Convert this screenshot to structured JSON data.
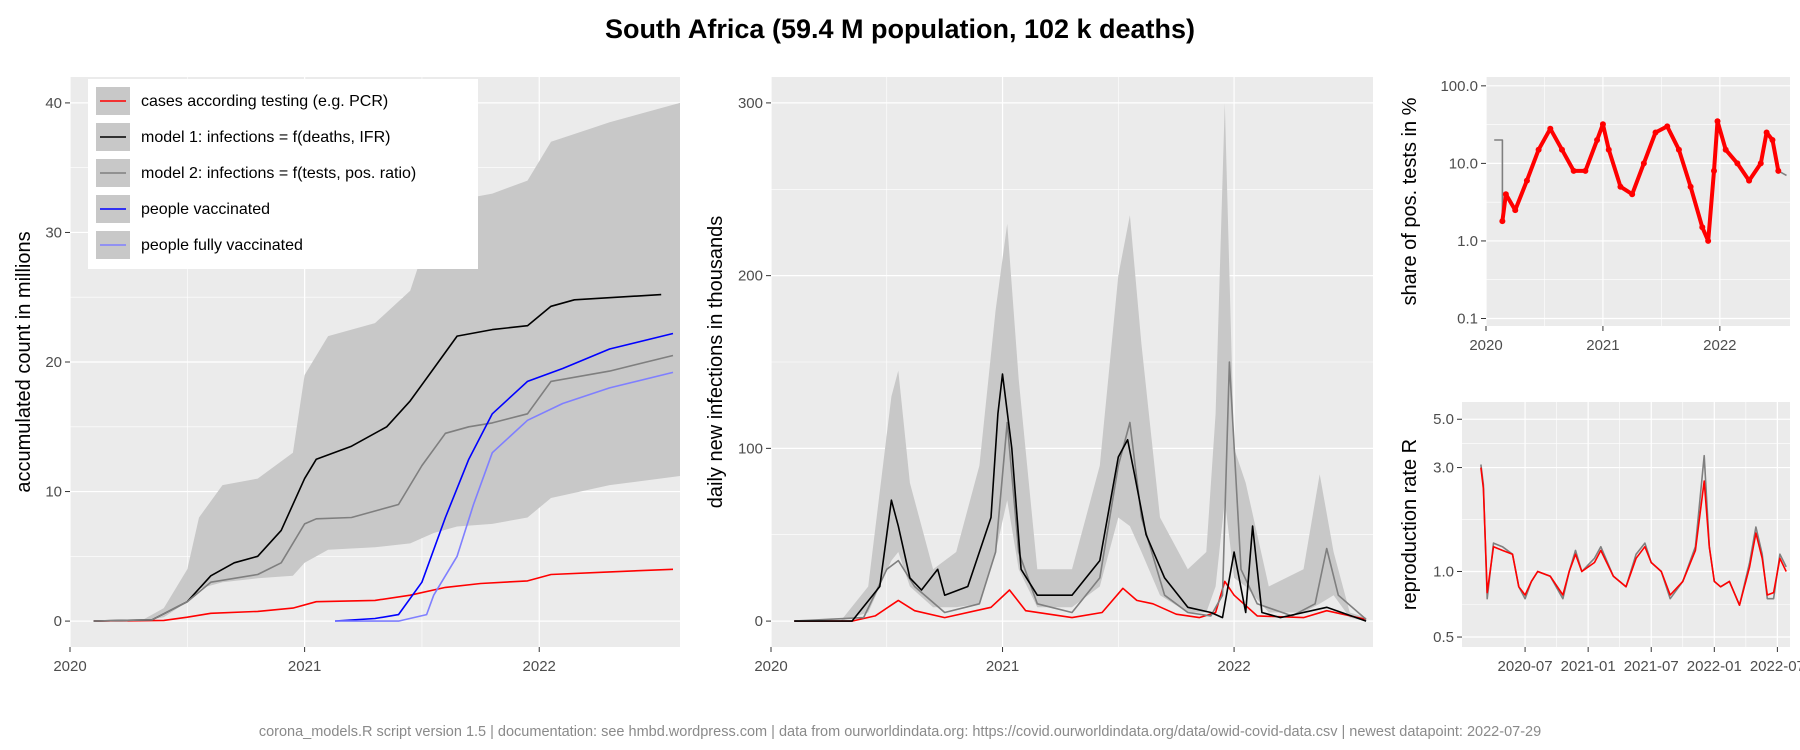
{
  "title": "South Africa (59.4 M population, 102 k deaths)",
  "footer": "corona_models.R script version 1.5 | documentation: see hmbd.wordpress.com | data from ourworldindata.org: https://covid.ourworldindata.org/data/owid-covid-data.csv | newest datapoint: 2022-07-29",
  "colors": {
    "panel_bg": "#ebebeb",
    "grid": "#ffffff",
    "band": "#c8c8c8",
    "cases": "#ff0000",
    "model1": "#000000",
    "model2": "#7f7f7f",
    "vaccinated": "#0000ff",
    "fully_vaccinated": "#7f7fff"
  },
  "chart_data": [
    {
      "id": "accumulated",
      "type": "line",
      "ylabel": "accumulated count in millions",
      "x_ticks": [
        "2020",
        "2021",
        "2022"
      ],
      "y_ticks": [
        "0",
        "10",
        "20",
        "30",
        "40"
      ],
      "xlim": [
        2020.0,
        2022.6
      ],
      "ylim": [
        -2,
        42
      ],
      "legend": {
        "position": "top-left",
        "entries": [
          {
            "key": "cases",
            "label": "cases according testing (e.g. PCR)"
          },
          {
            "key": "model1",
            "label": "model 1: infections = f(deaths, IFR)"
          },
          {
            "key": "model2",
            "label": "model 2: infections = f(tests, pos. ratio)"
          },
          {
            "key": "vaccinated",
            "label": "people vaccinated"
          },
          {
            "key": "fully_vaccinated",
            "label": "people fully vaccinated"
          }
        ]
      },
      "band": {
        "x": [
          2020.0,
          2020.3,
          2020.4,
          2020.5,
          2020.55,
          2020.65,
          2020.8,
          2020.95,
          2021.0,
          2021.1,
          2021.3,
          2021.45,
          2021.55,
          2021.65,
          2021.8,
          2021.95,
          2022.05,
          2022.3,
          2022.6
        ],
        "lower": [
          0,
          0,
          0.3,
          1.5,
          2.5,
          3.0,
          3.3,
          3.5,
          4.5,
          5.5,
          5.7,
          6.0,
          6.8,
          7.3,
          7.5,
          8.0,
          9.5,
          10.5,
          11.2
        ],
        "upper": [
          0,
          0,
          1.0,
          4.0,
          8.0,
          10.5,
          11.0,
          13.0,
          19.0,
          22.0,
          23.0,
          25.5,
          31.0,
          32.5,
          33.0,
          34.0,
          37.0,
          38.5,
          40.0
        ]
      },
      "series": [
        {
          "key": "cases",
          "x": [
            2020.1,
            2020.4,
            2020.5,
            2020.6,
            2020.8,
            2020.95,
            2021.05,
            2021.3,
            2021.45,
            2021.6,
            2021.75,
            2021.95,
            2022.05,
            2022.3,
            2022.57
          ],
          "y": [
            0,
            0.05,
            0.3,
            0.6,
            0.75,
            1.0,
            1.5,
            1.6,
            2.0,
            2.6,
            2.9,
            3.1,
            3.6,
            3.8,
            4.0
          ]
        },
        {
          "key": "model1",
          "x": [
            2020.1,
            2020.35,
            2020.5,
            2020.6,
            2020.7,
            2020.8,
            2020.9,
            2021.0,
            2021.05,
            2021.2,
            2021.35,
            2021.45,
            2021.55,
            2021.65,
            2021.8,
            2021.95,
            2022.05,
            2022.15,
            2022.52
          ],
          "y": [
            0,
            0.1,
            1.5,
            3.5,
            4.5,
            5.0,
            7.0,
            11.0,
            12.5,
            13.5,
            15.0,
            17.0,
            19.5,
            22.0,
            22.5,
            22.8,
            24.3,
            24.8,
            25.2
          ]
        },
        {
          "key": "model2",
          "x": [
            2020.1,
            2020.35,
            2020.5,
            2020.6,
            2020.8,
            2020.9,
            2021.0,
            2021.05,
            2021.2,
            2021.4,
            2021.5,
            2021.6,
            2021.7,
            2021.8,
            2021.95,
            2022.05,
            2022.3,
            2022.57
          ],
          "y": [
            0,
            0.1,
            1.5,
            3.0,
            3.6,
            4.5,
            7.5,
            7.9,
            8.0,
            9.0,
            12.0,
            14.5,
            15.0,
            15.3,
            16.0,
            18.5,
            19.3,
            20.5
          ]
        },
        {
          "key": "vaccinated",
          "x": [
            2021.13,
            2021.3,
            2021.4,
            2021.5,
            2021.6,
            2021.7,
            2021.8,
            2021.95,
            2022.1,
            2022.3,
            2022.57
          ],
          "y": [
            0,
            0.2,
            0.5,
            3.0,
            8.0,
            12.5,
            16.0,
            18.5,
            19.5,
            21.0,
            22.2
          ]
        },
        {
          "key": "fully_vaccinated",
          "x": [
            2021.13,
            2021.4,
            2021.52,
            2021.55,
            2021.65,
            2021.72,
            2021.8,
            2021.95,
            2022.1,
            2022.3,
            2022.57
          ],
          "y": [
            0,
            0,
            0.5,
            2.0,
            5.0,
            9.0,
            13.0,
            15.5,
            16.8,
            18.0,
            19.2
          ]
        }
      ]
    },
    {
      "id": "daily",
      "type": "line",
      "ylabel": "daily new infections in thousands",
      "x_ticks": [
        "2020",
        "2021",
        "2022"
      ],
      "y_ticks": [
        "0",
        "100",
        "200",
        "300"
      ],
      "xlim": [
        2020.0,
        2022.6
      ],
      "ylim": [
        -15,
        315
      ],
      "band": {
        "x": [
          2020.1,
          2020.3,
          2020.42,
          2020.52,
          2020.55,
          2020.6,
          2020.7,
          2020.8,
          2020.9,
          2020.97,
          2021.02,
          2021.07,
          2021.15,
          2021.3,
          2021.42,
          2021.5,
          2021.55,
          2021.6,
          2021.68,
          2021.8,
          2021.88,
          2021.92,
          2021.96,
          2022.0,
          2022.05,
          2022.15,
          2022.3,
          2022.37,
          2022.43,
          2022.5,
          2022.57
        ],
        "lower": [
          0,
          0,
          5,
          35,
          40,
          20,
          8,
          8,
          10,
          40,
          70,
          30,
          8,
          8,
          20,
          60,
          55,
          40,
          15,
          5,
          5,
          20,
          70,
          25,
          20,
          5,
          5,
          10,
          15,
          2,
          0
        ],
        "upper": [
          0,
          0,
          20,
          130,
          145,
          80,
          30,
          40,
          90,
          180,
          230,
          140,
          30,
          30,
          90,
          200,
          235,
          160,
          60,
          30,
          40,
          120,
          300,
          100,
          80,
          20,
          30,
          85,
          40,
          5,
          2
        ]
      },
      "series": [
        {
          "key": "cases",
          "x": [
            2020.1,
            2020.35,
            2020.45,
            2020.55,
            2020.62,
            2020.75,
            2020.95,
            2021.03,
            2021.1,
            2021.3,
            2021.43,
            2021.52,
            2021.58,
            2021.65,
            2021.75,
            2021.85,
            2021.92,
            2021.96,
            2022.0,
            2022.1,
            2022.3,
            2022.4,
            2022.57
          ],
          "y": [
            0,
            0,
            3,
            12,
            6,
            2,
            8,
            18,
            6,
            2,
            5,
            19,
            12,
            10,
            4,
            2,
            5,
            23,
            15,
            3,
            2,
            6,
            1
          ]
        },
        {
          "key": "model2",
          "x": [
            2020.1,
            2020.4,
            2020.5,
            2020.55,
            2020.62,
            2020.75,
            2020.9,
            2020.97,
            2021.02,
            2021.07,
            2021.15,
            2021.3,
            2021.42,
            2021.5,
            2021.55,
            2021.6,
            2021.7,
            2021.8,
            2021.9,
            2021.95,
            2021.98,
            2022.03,
            2022.1,
            2022.25,
            2022.35,
            2022.4,
            2022.45,
            2022.57
          ],
          "y": [
            0,
            2,
            30,
            35,
            20,
            5,
            10,
            40,
            115,
            40,
            10,
            5,
            25,
            90,
            115,
            60,
            15,
            5,
            3,
            15,
            150,
            30,
            10,
            3,
            10,
            42,
            15,
            1
          ]
        },
        {
          "key": "model1",
          "x": [
            2020.1,
            2020.35,
            2020.47,
            2020.52,
            2020.55,
            2020.6,
            2020.65,
            2020.72,
            2020.75,
            2020.85,
            2020.95,
            2020.98,
            2021.0,
            2021.04,
            2021.08,
            2021.15,
            2021.3,
            2021.42,
            2021.5,
            2021.54,
            2021.57,
            2021.62,
            2021.7,
            2021.8,
            2021.9,
            2021.95,
            2022.0,
            2022.05,
            2022.08,
            2022.12,
            2022.2,
            2022.4,
            2022.57
          ],
          "y": [
            0,
            0,
            20,
            70,
            55,
            25,
            18,
            30,
            15,
            20,
            60,
            120,
            143,
            100,
            30,
            15,
            15,
            35,
            95,
            105,
            85,
            50,
            25,
            8,
            5,
            2,
            40,
            5,
            55,
            5,
            2,
            8,
            0
          ]
        }
      ]
    },
    {
      "id": "positivity",
      "type": "line",
      "ylabel": "share of pos. tests in %",
      "y_scale": "log",
      "x_ticks": [
        "2020",
        "2021",
        "2022"
      ],
      "y_ticks": [
        "0.1",
        "1.0",
        "10.0",
        "100.0"
      ],
      "xlim": [
        2020.0,
        2022.6
      ],
      "ylim": [
        0.08,
        130
      ],
      "series": [
        {
          "key": "model2",
          "x": [
            2020.07,
            2020.14,
            2020.14,
            2020.17,
            2020.25,
            2020.35,
            2020.45,
            2020.55,
            2020.65,
            2020.75,
            2020.85,
            2020.95,
            2021.0,
            2021.05,
            2021.15,
            2021.25,
            2021.35,
            2021.45,
            2021.55,
            2021.65,
            2021.75,
            2021.85,
            2021.9,
            2021.95,
            2021.98,
            2022.05,
            2022.15,
            2022.25,
            2022.35,
            2022.4,
            2022.45,
            2022.5,
            2022.57
          ],
          "y": [
            20,
            20,
            1.8,
            4,
            2.5,
            6,
            15,
            28,
            15,
            8,
            8,
            20,
            32,
            15,
            5,
            4,
            10,
            25,
            30,
            15,
            5,
            1.5,
            1,
            8,
            35,
            15,
            10,
            6,
            10,
            25,
            20,
            8,
            7
          ]
        },
        {
          "key": "cases",
          "x": [
            2020.14,
            2020.17,
            2020.25,
            2020.35,
            2020.45,
            2020.55,
            2020.65,
            2020.75,
            2020.85,
            2020.95,
            2021.0,
            2021.05,
            2021.15,
            2021.25,
            2021.35,
            2021.45,
            2021.55,
            2021.65,
            2021.75,
            2021.85,
            2021.9,
            2021.95,
            2021.98,
            2022.05,
            2022.15,
            2022.25,
            2022.35,
            2022.4,
            2022.45,
            2022.5
          ],
          "y": [
            1.8,
            4,
            2.5,
            6,
            15,
            28,
            15,
            8,
            8,
            20,
            32,
            15,
            5,
            4,
            10,
            25,
            30,
            15,
            5,
            1.5,
            1,
            8,
            35,
            15,
            10,
            6,
            10,
            25,
            20,
            8
          ]
        }
      ]
    },
    {
      "id": "reproduction",
      "type": "line",
      "ylabel": "reproduction rate R",
      "y_scale": "log",
      "x_ticks": [
        "2020-07",
        "2021-01",
        "2021-07",
        "2022-01",
        "2022-07"
      ],
      "y_ticks": [
        "0.5",
        "1.0",
        "3.0",
        "5.0"
      ],
      "xlim": [
        2020.0,
        2022.6
      ],
      "ylim": [
        0.45,
        6
      ],
      "series": [
        {
          "key": "model2",
          "x": [
            2020.15,
            2020.17,
            2020.2,
            2020.25,
            2020.32,
            2020.4,
            2020.45,
            2020.5,
            2020.55,
            2020.6,
            2020.7,
            2020.8,
            2020.85,
            2020.9,
            2020.95,
            2021.05,
            2021.1,
            2021.2,
            2021.3,
            2021.38,
            2021.45,
            2021.5,
            2021.58,
            2021.65,
            2021.75,
            2021.85,
            2021.92,
            2021.96,
            2022.0,
            2022.05,
            2022.12,
            2022.2,
            2022.28,
            2022.33,
            2022.38,
            2022.42,
            2022.47,
            2022.52,
            2022.57
          ],
          "y": [
            3.1,
            2.5,
            0.75,
            1.35,
            1.3,
            1.2,
            0.85,
            0.75,
            0.9,
            1.0,
            0.95,
            0.75,
            1.0,
            1.25,
            1.0,
            1.15,
            1.3,
            0.95,
            0.85,
            1.2,
            1.35,
            1.1,
            1.0,
            0.75,
            0.9,
            1.3,
            3.4,
            1.3,
            0.9,
            0.85,
            0.9,
            0.7,
            1.1,
            1.6,
            1.2,
            0.75,
            0.75,
            1.2,
            1.05
          ]
        },
        {
          "key": "cases",
          "x": [
            2020.15,
            2020.17,
            2020.2,
            2020.25,
            2020.32,
            2020.4,
            2020.45,
            2020.5,
            2020.55,
            2020.6,
            2020.7,
            2020.8,
            2020.85,
            2020.9,
            2020.95,
            2021.05,
            2021.1,
            2021.2,
            2021.3,
            2021.38,
            2021.45,
            2021.5,
            2021.58,
            2021.65,
            2021.75,
            2021.85,
            2021.92,
            2021.96,
            2022.0,
            2022.05,
            2022.12,
            2022.2,
            2022.28,
            2022.33,
            2022.38,
            2022.42,
            2022.47,
            2022.52,
            2022.57
          ],
          "y": [
            3.0,
            2.4,
            0.8,
            1.3,
            1.25,
            1.2,
            0.85,
            0.78,
            0.9,
            1.0,
            0.95,
            0.78,
            1.0,
            1.2,
            1.0,
            1.1,
            1.25,
            0.95,
            0.85,
            1.15,
            1.3,
            1.1,
            1.0,
            0.78,
            0.9,
            1.25,
            2.6,
            1.3,
            0.9,
            0.85,
            0.9,
            0.7,
            1.05,
            1.5,
            1.15,
            0.78,
            0.8,
            1.15,
            1.0
          ]
        }
      ]
    }
  ]
}
